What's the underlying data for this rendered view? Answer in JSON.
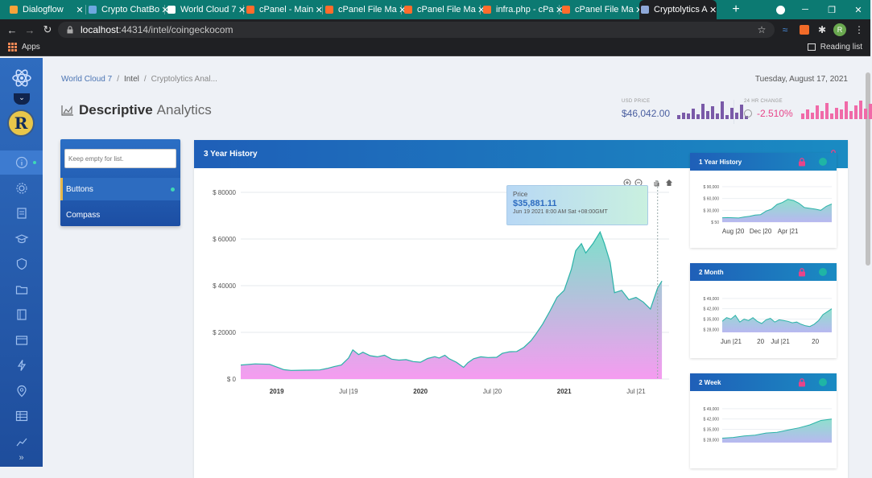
{
  "browser": {
    "tabs": [
      {
        "title": "Dialogflow",
        "color": "#f6a33a"
      },
      {
        "title": "Crypto ChatBo",
        "color": "#6ea8e0"
      },
      {
        "title": "World Cloud 7",
        "color": "#ffffff"
      },
      {
        "title": "cPanel - Main",
        "color": "#ff6c2c"
      },
      {
        "title": "cPanel File Ma",
        "color": "#ff6c2c"
      },
      {
        "title": "cPanel File Ma",
        "color": "#ff6c2c"
      },
      {
        "title": "infra.php - cPa",
        "color": "#ff6c2c"
      },
      {
        "title": "cPanel File Ma",
        "color": "#ff6c2c"
      },
      {
        "title": "Cryptolytics A",
        "color": "#8ea8d8",
        "active": true
      }
    ],
    "new_tab": "+",
    "url_host": "localhost",
    "url_rest": ":44314/intel/coingeckocom",
    "profile_initial": "R",
    "bookmarks": {
      "apps": "Apps",
      "reading_list": "Reading list"
    }
  },
  "sidebar": {
    "avatar_letter": "R",
    "toggle": "⌄",
    "expand": "»",
    "items": [
      "info-icon",
      "gear-icon",
      "file-icon",
      "graduation-cap-icon",
      "shield-icon",
      "folder-icon",
      "book-icon",
      "window-icon",
      "bolt-icon",
      "map-pin-icon",
      "table-icon",
      "chart-icon"
    ]
  },
  "breadcrumb": {
    "items": [
      "World Cloud 7",
      "Intel",
      "Cryptolytics Anal..."
    ],
    "sep": "/"
  },
  "date": "Tuesday, August 17, 2021",
  "title": {
    "bold": "Descriptive",
    "light": "Analytics"
  },
  "stats": {
    "usd_label": "USD PRICE",
    "usd_value": "$46,042.00",
    "usd_color": "#4a5fa0",
    "usd_bars": [
      0.2,
      0.35,
      0.3,
      0.55,
      0.25,
      0.8,
      0.4,
      0.65,
      0.3,
      0.9,
      0.2,
      0.6,
      0.35,
      0.75,
      0.15
    ],
    "usd_bar_color": "#7a5aa8",
    "change_label": "24 HR CHANGE",
    "change_value": "-2.510%",
    "change_color": "#e8448a",
    "change_bars": [
      0.3,
      0.5,
      0.35,
      0.7,
      0.4,
      0.85,
      0.3,
      0.6,
      0.5,
      0.9,
      0.4,
      0.7,
      0.95,
      0.55,
      0.8
    ],
    "change_bar_color": "#f06aa8"
  },
  "search": {
    "placeholder": "Keep empty for list.",
    "items": [
      {
        "label": "Buttons",
        "selected": true
      },
      {
        "label": "Compass",
        "selected": false
      }
    ]
  },
  "main_card": {
    "title": "3 Year History",
    "lock_color": "#e8448a",
    "tooltip": {
      "label": "Price",
      "value": "$35,881.11",
      "date": "Jun 19 2021 8:00 AM Sat +08:00GMT"
    },
    "chart_data": {
      "type": "area",
      "ylabels": [
        "$ 80000",
        "$ 60000",
        "$ 40000",
        "$ 20000",
        "$ 0"
      ],
      "yticks": [
        80000,
        60000,
        40000,
        20000,
        0
      ],
      "ylim": [
        0,
        80000
      ],
      "xlabels": [
        {
          "t": 0.25,
          "label": "2019",
          "bold": true
        },
        {
          "t": 0.75,
          "label": "Jul |19",
          "bold": false
        },
        {
          "t": 1.25,
          "label": "2020",
          "bold": true
        },
        {
          "t": 1.75,
          "label": "Jul |20",
          "bold": false
        },
        {
          "t": 2.25,
          "label": "2021",
          "bold": true
        },
        {
          "t": 2.75,
          "label": "Jul |21",
          "bold": false
        }
      ],
      "xlim": [
        0,
        2.98
      ],
      "series": [
        {
          "values": [
            [
              0,
              6000
            ],
            [
              0.1,
              6500
            ],
            [
              0.2,
              6300
            ],
            [
              0.3,
              4000
            ],
            [
              0.35,
              3700
            ],
            [
              0.45,
              3800
            ],
            [
              0.55,
              3900
            ],
            [
              0.6,
              4500
            ],
            [
              0.65,
              5300
            ],
            [
              0.7,
              6000
            ],
            [
              0.75,
              9000
            ],
            [
              0.78,
              12500
            ],
            [
              0.82,
              10500
            ],
            [
              0.85,
              11500
            ],
            [
              0.9,
              10000
            ],
            [
              0.95,
              9500
            ],
            [
              1.0,
              10200
            ],
            [
              1.05,
              8500
            ],
            [
              1.1,
              8100
            ],
            [
              1.15,
              8300
            ],
            [
              1.2,
              7500
            ],
            [
              1.25,
              7200
            ],
            [
              1.3,
              8800
            ],
            [
              1.35,
              9600
            ],
            [
              1.38,
              9000
            ],
            [
              1.42,
              10200
            ],
            [
              1.45,
              8700
            ],
            [
              1.5,
              7200
            ],
            [
              1.55,
              5000
            ],
            [
              1.58,
              7000
            ],
            [
              1.62,
              8700
            ],
            [
              1.67,
              9500
            ],
            [
              1.72,
              9200
            ],
            [
              1.78,
              9300
            ],
            [
              1.82,
              11000
            ],
            [
              1.87,
              11700
            ],
            [
              1.92,
              11800
            ],
            [
              1.97,
              13600
            ],
            [
              2.02,
              16500
            ],
            [
              2.05,
              19000
            ],
            [
              2.1,
              23500
            ],
            [
              2.15,
              29000
            ],
            [
              2.2,
              35000
            ],
            [
              2.25,
              38000
            ],
            [
              2.3,
              47000
            ],
            [
              2.33,
              55000
            ],
            [
              2.37,
              58000
            ],
            [
              2.4,
              54000
            ],
            [
              2.45,
              58000
            ],
            [
              2.5,
              63000
            ],
            [
              2.53,
              58000
            ],
            [
              2.57,
              50000
            ],
            [
              2.6,
              37000
            ],
            [
              2.65,
              38000
            ],
            [
              2.7,
              34000
            ],
            [
              2.75,
              35000
            ],
            [
              2.8,
              33000
            ],
            [
              2.85,
              30000
            ],
            [
              2.9,
              39000
            ],
            [
              2.93,
              42000
            ]
          ]
        }
      ],
      "line_color": "#2bb3a8",
      "fill_top": "#7ee0cb",
      "fill_bottom": "#f59cf0"
    }
  },
  "side_cards": [
    {
      "title": "1 Year History",
      "ylabels": [
        "$ 90,000",
        "$ 60,000",
        "$ 30,000",
        "$ 50"
      ],
      "yvals": [
        90000,
        60000,
        30000,
        50
      ],
      "ylim": [
        0,
        90000
      ],
      "xlabels": [
        {
          "t": 0.1,
          "label": "Aug |20"
        },
        {
          "t": 0.35,
          "label": "Dec |20"
        },
        {
          "t": 0.6,
          "label": "Apr |21"
        }
      ],
      "values": [
        [
          0,
          11000
        ],
        [
          0.05,
          11500
        ],
        [
          0.1,
          11000
        ],
        [
          0.15,
          10500
        ],
        [
          0.2,
          13000
        ],
        [
          0.25,
          15000
        ],
        [
          0.3,
          18000
        ],
        [
          0.35,
          19000
        ],
        [
          0.4,
          28000
        ],
        [
          0.45,
          33000
        ],
        [
          0.5,
          45000
        ],
        [
          0.55,
          50000
        ],
        [
          0.6,
          58000
        ],
        [
          0.65,
          55000
        ],
        [
          0.7,
          48000
        ],
        [
          0.75,
          37000
        ],
        [
          0.8,
          35000
        ],
        [
          0.85,
          33000
        ],
        [
          0.9,
          30000
        ],
        [
          0.95,
          40000
        ],
        [
          1.0,
          46000
        ]
      ]
    },
    {
      "title": "2 Month",
      "ylabels": [
        "$ 49,000",
        "$ 42,000",
        "$ 35,000",
        "$ 28,000"
      ],
      "yvals": [
        49000,
        42000,
        35000,
        28000
      ],
      "ylim": [
        26000,
        50000
      ],
      "xlabels": [
        {
          "t": 0.08,
          "label": "Jun |21"
        },
        {
          "t": 0.35,
          "label": "20"
        },
        {
          "t": 0.53,
          "label": "Jul |21"
        },
        {
          "t": 0.85,
          "label": "20"
        }
      ],
      "values": [
        [
          0,
          33500
        ],
        [
          0.04,
          36000
        ],
        [
          0.08,
          35000
        ],
        [
          0.12,
          37500
        ],
        [
          0.16,
          33000
        ],
        [
          0.2,
          35000
        ],
        [
          0.24,
          34000
        ],
        [
          0.28,
          36000
        ],
        [
          0.32,
          33500
        ],
        [
          0.36,
          32000
        ],
        [
          0.4,
          34500
        ],
        [
          0.44,
          35500
        ],
        [
          0.48,
          33000
        ],
        [
          0.52,
          34500
        ],
        [
          0.56,
          34000
        ],
        [
          0.6,
          33500
        ],
        [
          0.64,
          32500
        ],
        [
          0.68,
          33000
        ],
        [
          0.72,
          31500
        ],
        [
          0.76,
          30500
        ],
        [
          0.8,
          30000
        ],
        [
          0.84,
          31500
        ],
        [
          0.88,
          34000
        ],
        [
          0.92,
          38000
        ],
        [
          0.96,
          40000
        ],
        [
          1.0,
          42000
        ]
      ]
    },
    {
      "title": "2 Week",
      "ylabels": [
        "$ 49,000",
        "$ 42,000",
        "$ 35,000",
        "$ 28,000"
      ],
      "yvals": [
        49000,
        42000,
        35000,
        28000
      ],
      "ylim": [
        26000,
        50000
      ],
      "xlabels": [],
      "values": [
        [
          0,
          29000
        ],
        [
          0.1,
          29500
        ],
        [
          0.2,
          30500
        ],
        [
          0.3,
          31000
        ],
        [
          0.4,
          32500
        ],
        [
          0.5,
          33000
        ],
        [
          0.6,
          34500
        ],
        [
          0.7,
          36000
        ],
        [
          0.8,
          38000
        ],
        [
          0.9,
          41000
        ],
        [
          1.0,
          42000
        ]
      ]
    }
  ]
}
